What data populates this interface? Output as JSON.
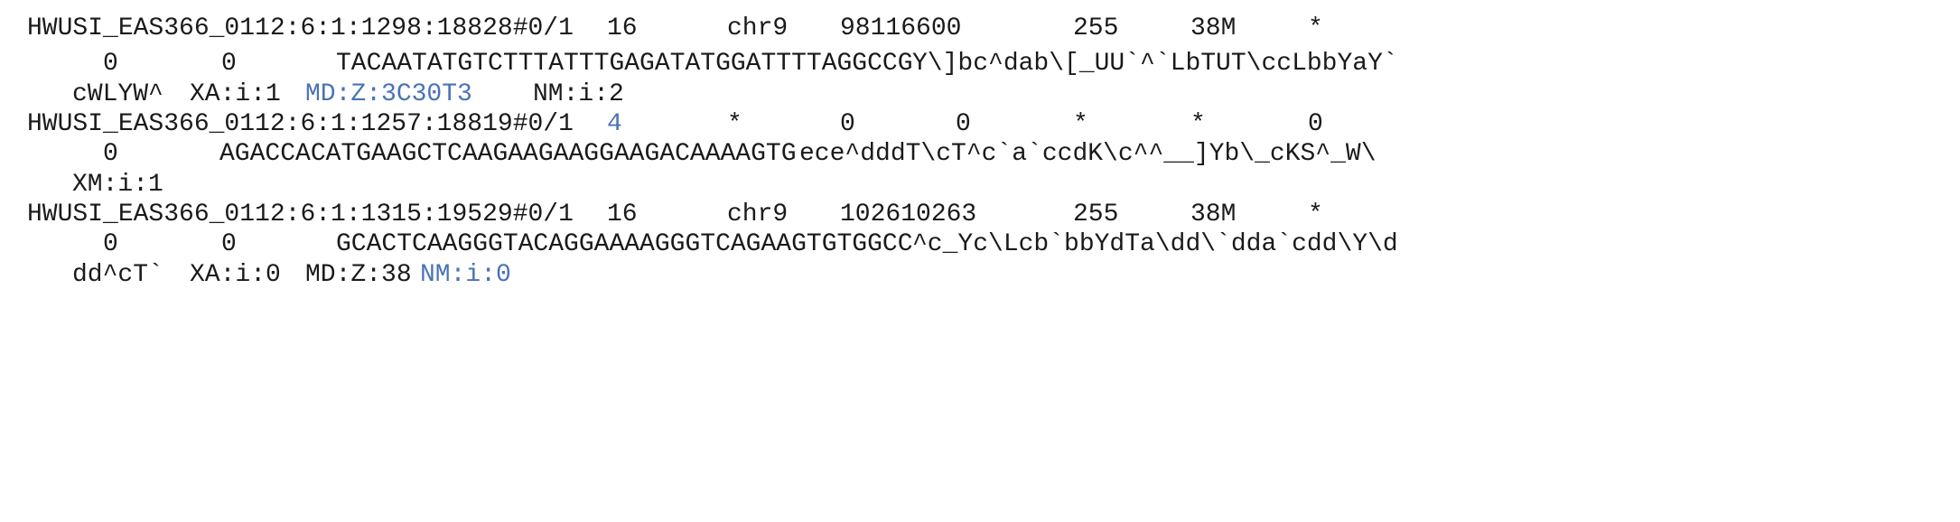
{
  "records": [
    {
      "qname": "HWUSI_EAS366_0112:6:1:1298:18828#0/1",
      "flag": "16",
      "rname": "chr9",
      "pos": "98116600",
      "mapq": "255",
      "cigar": "38M",
      "rnext": "*",
      "pnext": "0",
      "tlen": "0",
      "seq": "TACAATATGTCTTTATTTGAGATATGGATTTTAGGCCG",
      "qual_part1": "Y\\]bc^dab\\[_UU`^`LbTUT\\ccLbbYaY`",
      "qual_part2": "cWLYW^",
      "tags": [
        "XA:i:1",
        "MD:Z:3C30T3",
        "NM:i:2"
      ]
    },
    {
      "qname": "HWUSI_EAS366_0112:6:1:1257:18819#0/1",
      "flag": "4",
      "rname": "*",
      "pos": "0",
      "mapq": "0",
      "cigar": "*",
      "rnext": "*",
      "pnext": "0",
      "tlen": "0",
      "seq": "AGACCACATGAAGCTCAAGAAGAAGGAAGACAAAAGTG",
      "qual_part1": "ece^dddT\\cT^c`a`ccdK\\c^^__]Yb\\_cKS^_W\\",
      "tags": [
        "XM:i:1"
      ]
    },
    {
      "qname": "HWUSI_EAS366_0112:6:1:1315:19529#0/1",
      "flag": "16",
      "rname": "chr9",
      "pos": "102610263",
      "mapq": "255",
      "cigar": "38M",
      "rnext": "*",
      "pnext": "0",
      "tlen": "0",
      "seq": "GCACTCAAGGGTACAGGAAAAGGGTCAGAAGTGTGGCC",
      "qual_part1": "^c_Yc\\Lcb`bbYdTa\\dd\\`dda`cdd\\Y\\d",
      "qual_part2": "dd^cT`",
      "tags": [
        "XA:i:0",
        "MD:Z:38",
        "NM:i:0"
      ]
    }
  ],
  "colors": {
    "text": "#1a1a1a",
    "highlight": "#4a72b8"
  }
}
